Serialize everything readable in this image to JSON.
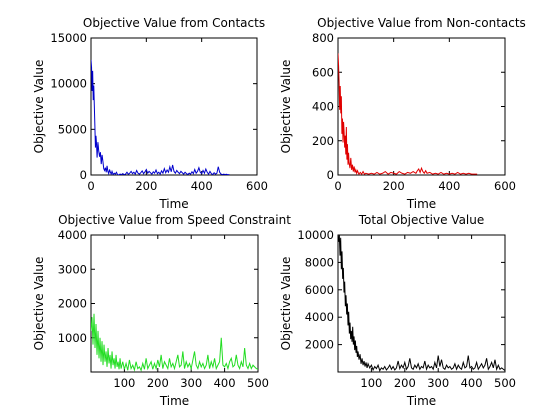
{
  "chart_data": [
    {
      "type": "line",
      "title": "Objective Value from Contacts",
      "xlabel": "Time",
      "ylabel": "Objective Value",
      "xlim": [
        0,
        600
      ],
      "ylim": [
        0,
        15000
      ],
      "xticks": [
        0,
        200,
        400,
        600
      ],
      "yticks": [
        0,
        5000,
        10000,
        15000
      ],
      "series": [
        {
          "color": "#0000cc",
          "x": [
            0,
            2,
            4,
            6,
            8,
            10,
            12,
            14,
            16,
            18,
            20,
            22,
            25,
            28,
            31,
            34,
            37,
            40,
            43,
            46,
            49,
            52,
            55,
            58,
            61,
            64,
            67,
            70,
            73,
            76,
            80,
            84,
            88,
            92,
            96,
            100,
            105,
            110,
            115,
            120,
            125,
            130,
            135,
            140,
            145,
            150,
            155,
            160,
            165,
            170,
            175,
            180,
            185,
            190,
            195,
            200,
            205,
            210,
            215,
            220,
            225,
            230,
            235,
            240,
            245,
            250,
            255,
            260,
            265,
            270,
            275,
            280,
            285,
            290,
            295,
            300,
            305,
            310,
            315,
            320,
            325,
            330,
            335,
            340,
            345,
            350,
            355,
            360,
            365,
            370,
            375,
            380,
            385,
            390,
            395,
            400,
            405,
            410,
            415,
            420,
            425,
            430,
            435,
            440,
            445,
            450,
            455,
            460,
            465,
            470,
            475,
            480,
            485,
            490,
            495,
            500
          ],
          "values": [
            12600,
            11800,
            9200,
            11400,
            8200,
            9800,
            7600,
            5400,
            3000,
            4300,
            3400,
            1900,
            3600,
            2600,
            2000,
            2500,
            1200,
            2200,
            1500,
            700,
            500,
            800,
            300,
            1000,
            400,
            150,
            600,
            300,
            100,
            400,
            50,
            200,
            100,
            300,
            50,
            0,
            100,
            50,
            150,
            30,
            100,
            300,
            80,
            200,
            400,
            150,
            300,
            100,
            500,
            200,
            100,
            250,
            450,
            150,
            350,
            600,
            200,
            400,
            250,
            100,
            350,
            200,
            550,
            150,
            300,
            100,
            450,
            200,
            700,
            250,
            550,
            300,
            900,
            350,
            1100,
            400,
            200,
            500,
            300,
            150,
            400,
            250,
            100,
            300,
            150,
            50,
            200,
            100,
            350,
            150,
            600,
            200,
            400,
            800,
            300,
            150,
            500,
            200,
            650,
            300,
            100,
            400,
            150,
            50,
            250,
            100,
            200,
            900,
            300,
            100,
            50,
            100,
            50,
            80,
            30,
            50
          ]
        }
      ]
    },
    {
      "type": "line",
      "title": "Objective Value from Non-contacts",
      "xlabel": "Time",
      "ylabel": "Objective Value",
      "xlim": [
        0,
        600
      ],
      "ylim": [
        0,
        800
      ],
      "xticks": [
        0,
        200,
        400,
        600
      ],
      "yticks": [
        0,
        200,
        400,
        600,
        800
      ],
      "series": [
        {
          "color": "#e00000",
          "x": [
            0,
            2,
            4,
            6,
            8,
            10,
            12,
            14,
            16,
            18,
            20,
            22,
            24,
            26,
            28,
            30,
            32,
            34,
            36,
            38,
            40,
            43,
            46,
            49,
            52,
            55,
            58,
            61,
            64,
            67,
            70,
            75,
            80,
            85,
            90,
            95,
            100,
            110,
            120,
            130,
            140,
            150,
            160,
            170,
            180,
            190,
            200,
            210,
            220,
            230,
            240,
            250,
            260,
            270,
            280,
            285,
            290,
            295,
            300,
            305,
            310,
            315,
            320,
            330,
            340,
            350,
            360,
            370,
            380,
            390,
            400,
            410,
            420,
            430,
            440,
            450,
            460,
            470,
            480,
            490,
            500
          ],
          "values": [
            710,
            640,
            540,
            380,
            520,
            360,
            460,
            240,
            330,
            190,
            310,
            250,
            160,
            230,
            120,
            280,
            90,
            180,
            60,
            130,
            70,
            40,
            100,
            30,
            60,
            20,
            50,
            15,
            30,
            10,
            25,
            5,
            15,
            5,
            20,
            5,
            10,
            5,
            10,
            5,
            15,
            5,
            10,
            20,
            5,
            15,
            10,
            5,
            20,
            10,
            5,
            15,
            10,
            20,
            10,
            25,
            35,
            15,
            40,
            20,
            10,
            25,
            10,
            15,
            5,
            10,
            5,
            15,
            5,
            10,
            5,
            10,
            5,
            15,
            5,
            10,
            5,
            10,
            5,
            5,
            5
          ]
        }
      ]
    },
    {
      "type": "line",
      "title": "Objective Value from Speed Constraint",
      "xlabel": "Time",
      "ylabel": "Objective Value",
      "xlim": [
        0,
        500
      ],
      "ylim": [
        0,
        4000
      ],
      "xticks": [
        100,
        200,
        300,
        400,
        500
      ],
      "yticks": [
        1000,
        2000,
        3000,
        4000
      ],
      "series": [
        {
          "color": "#22dd22",
          "x": [
            0,
            3,
            6,
            9,
            12,
            15,
            18,
            21,
            24,
            27,
            30,
            33,
            36,
            39,
            42,
            45,
            48,
            51,
            54,
            57,
            60,
            63,
            66,
            69,
            72,
            75,
            78,
            81,
            84,
            87,
            90,
            95,
            100,
            105,
            110,
            115,
            120,
            125,
            130,
            135,
            140,
            145,
            150,
            155,
            160,
            165,
            170,
            175,
            180,
            185,
            190,
            195,
            200,
            205,
            210,
            215,
            220,
            225,
            230,
            235,
            240,
            245,
            250,
            255,
            260,
            265,
            270,
            275,
            280,
            285,
            290,
            295,
            300,
            305,
            310,
            315,
            320,
            325,
            330,
            335,
            340,
            345,
            350,
            355,
            360,
            365,
            370,
            375,
            380,
            385,
            390,
            395,
            400,
            405,
            410,
            415,
            420,
            425,
            430,
            435,
            440,
            445,
            450,
            455,
            460,
            465,
            470,
            475,
            480,
            485,
            490,
            495,
            500
          ],
          "values": [
            1200,
            1600,
            800,
            1700,
            700,
            1400,
            500,
            1200,
            400,
            1000,
            300,
            900,
            200,
            800,
            300,
            600,
            150,
            700,
            250,
            500,
            100,
            600,
            200,
            400,
            100,
            500,
            150,
            300,
            80,
            400,
            100,
            300,
            80,
            250,
            50,
            350,
            100,
            200,
            60,
            300,
            100,
            150,
            50,
            250,
            80,
            400,
            100,
            200,
            300,
            80,
            250,
            100,
            350,
            150,
            500,
            100,
            300,
            200,
            100,
            400,
            150,
            250,
            100,
            300,
            500,
            150,
            200,
            600,
            100,
            300,
            150,
            250,
            100,
            350,
            600,
            200,
            100,
            300,
            150,
            250,
            100,
            200,
            500,
            100,
            300,
            150,
            400,
            100,
            200,
            300,
            1000,
            200,
            150,
            250,
            100,
            300,
            400,
            150,
            200,
            500,
            200,
            100,
            300,
            150,
            700,
            200,
            100,
            250,
            100,
            200,
            150,
            100,
            80
          ]
        }
      ]
    },
    {
      "type": "line",
      "title": "Total Objective Value",
      "xlabel": "Time",
      "ylabel": "Objective Value",
      "xlim": [
        0,
        500
      ],
      "ylim": [
        0,
        10000
      ],
      "xticks": [
        100,
        200,
        300,
        400,
        500
      ],
      "yticks": [
        2000,
        4000,
        6000,
        8000,
        10000
      ],
      "series": [
        {
          "color": "#000000",
          "x": [
            0,
            2,
            4,
            6,
            8,
            10,
            12,
            14,
            16,
            18,
            20,
            22,
            24,
            26,
            28,
            30,
            32,
            34,
            36,
            38,
            40,
            42,
            44,
            46,
            48,
            50,
            52,
            54,
            56,
            58,
            60,
            63,
            66,
            69,
            72,
            75,
            78,
            81,
            84,
            87,
            90,
            95,
            100,
            105,
            110,
            115,
            120,
            125,
            130,
            135,
            140,
            145,
            150,
            155,
            160,
            165,
            170,
            175,
            180,
            185,
            190,
            195,
            200,
            205,
            210,
            215,
            220,
            225,
            230,
            235,
            240,
            245,
            250,
            255,
            260,
            265,
            270,
            275,
            280,
            285,
            290,
            295,
            300,
            305,
            310,
            315,
            320,
            325,
            330,
            335,
            340,
            345,
            350,
            355,
            360,
            365,
            370,
            375,
            380,
            385,
            390,
            395,
            400,
            405,
            410,
            415,
            420,
            425,
            430,
            435,
            440,
            445,
            450,
            455,
            460,
            465,
            470,
            475,
            480,
            485,
            490,
            495,
            500
          ],
          "values": [
            10000,
            9500,
            10000,
            8500,
            9800,
            7500,
            8800,
            6800,
            7600,
            5800,
            6600,
            4800,
            5600,
            4200,
            5000,
            3400,
            4400,
            2800,
            3600,
            2400,
            3000,
            2200,
            3300,
            2000,
            2600,
            1600,
            2300,
            1400,
            1900,
            1100,
            1500,
            900,
            1300,
            600,
            1000,
            500,
            800,
            400,
            700,
            300,
            600,
            300,
            500,
            150,
            400,
            250,
            500,
            100,
            300,
            200,
            400,
            150,
            300,
            500,
            200,
            400,
            150,
            300,
            800,
            250,
            500,
            300,
            700,
            200,
            400,
            1000,
            300,
            200,
            500,
            300,
            600,
            200,
            400,
            300,
            800,
            200,
            500,
            300,
            400,
            200,
            700,
            300,
            1200,
            400,
            900,
            300,
            200,
            500,
            300,
            400,
            200,
            300,
            600,
            200,
            500,
            300,
            200,
            700,
            300,
            400,
            1200,
            300,
            400,
            200,
            300,
            700,
            200,
            400,
            600,
            300,
            500,
            1000,
            200,
            400,
            700,
            300,
            900,
            200,
            500,
            200,
            300,
            200,
            100
          ]
        }
      ]
    }
  ]
}
